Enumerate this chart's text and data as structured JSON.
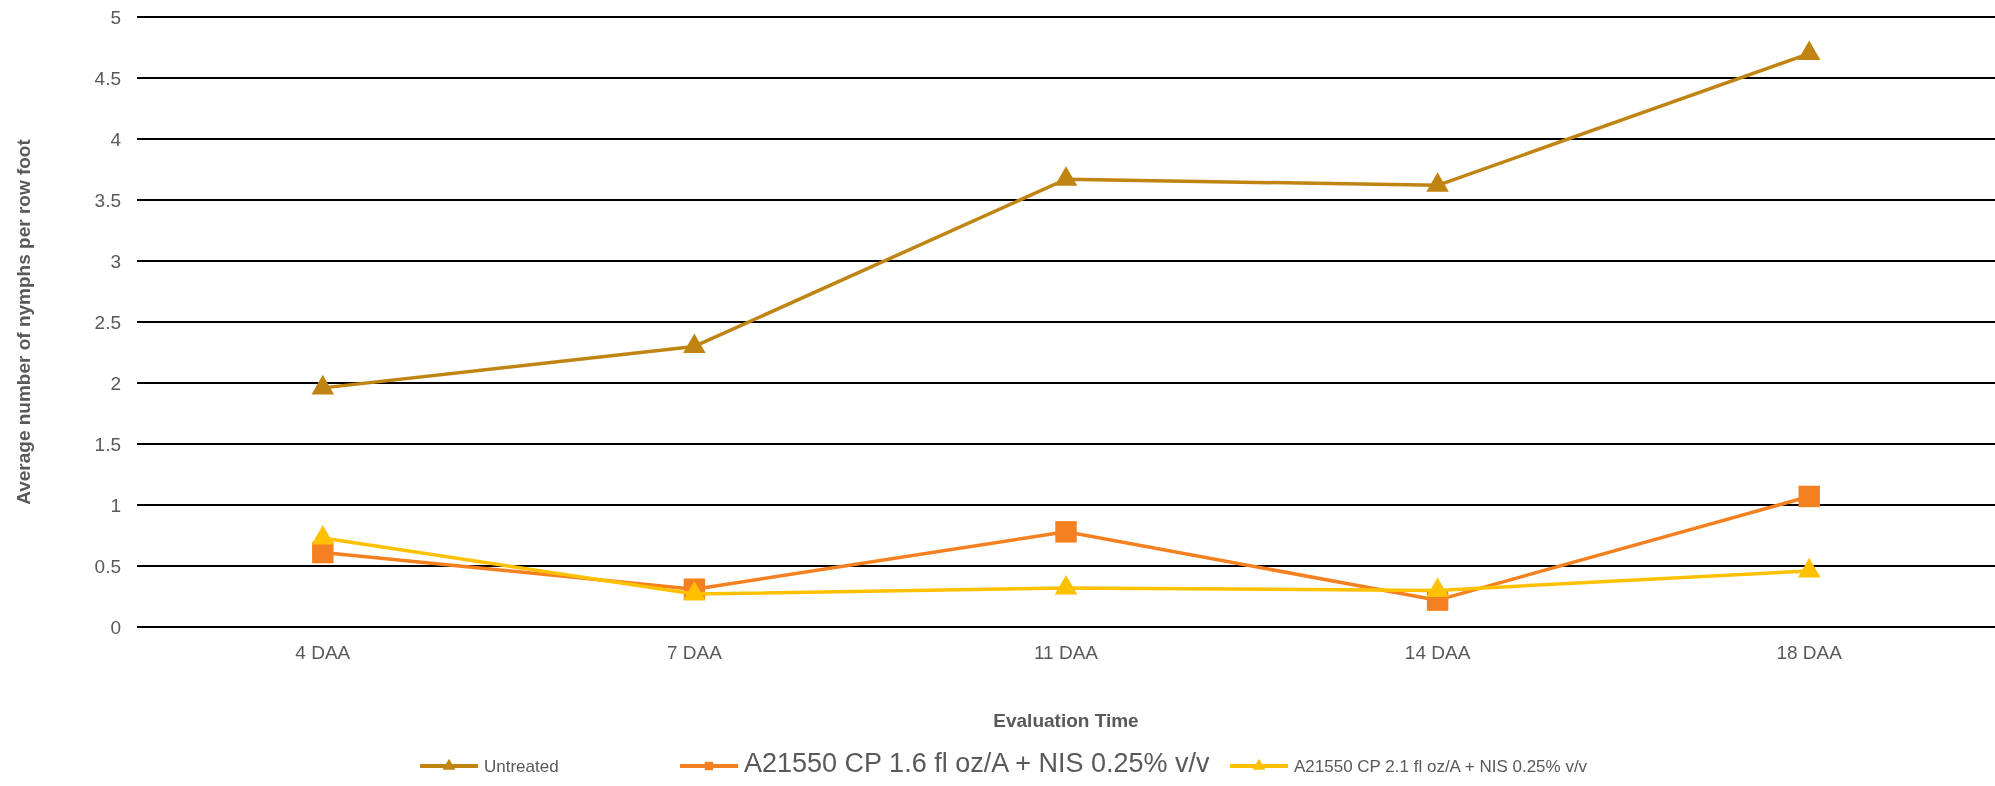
{
  "chart_data": {
    "type": "line",
    "xlabel": "Evaluation Time",
    "ylabel": "Average number of nymphs per row foot",
    "categories": [
      "4 DAA",
      "7 DAA",
      "11 DAA",
      "14 DAA",
      "18 DAA"
    ],
    "series": [
      {
        "name": "Untreated",
        "color": "#bf8412",
        "marker": "triangle",
        "values": [
          1.96,
          2.3,
          3.67,
          3.62,
          4.7
        ]
      },
      {
        "name": "A21550 CP 1.6 fl oz/A + NIS 0.25% v/v",
        "color": "#f4801f",
        "marker": "square",
        "values": [
          0.61,
          0.31,
          0.78,
          0.22,
          1.07
        ]
      },
      {
        "name": "A21550 CP  2.1 fl oz/A + NIS 0.25% v/v",
        "color": "#ffc000",
        "marker": "triangle",
        "values": [
          0.73,
          0.27,
          0.32,
          0.3,
          0.46
        ]
      }
    ],
    "ylim": [
      0,
      5
    ],
    "yticks": [
      0,
      0.5,
      1,
      1.5,
      2,
      2.5,
      3,
      3.5,
      4,
      4.5,
      5
    ],
    "grid": "y",
    "legend": "bottom"
  }
}
